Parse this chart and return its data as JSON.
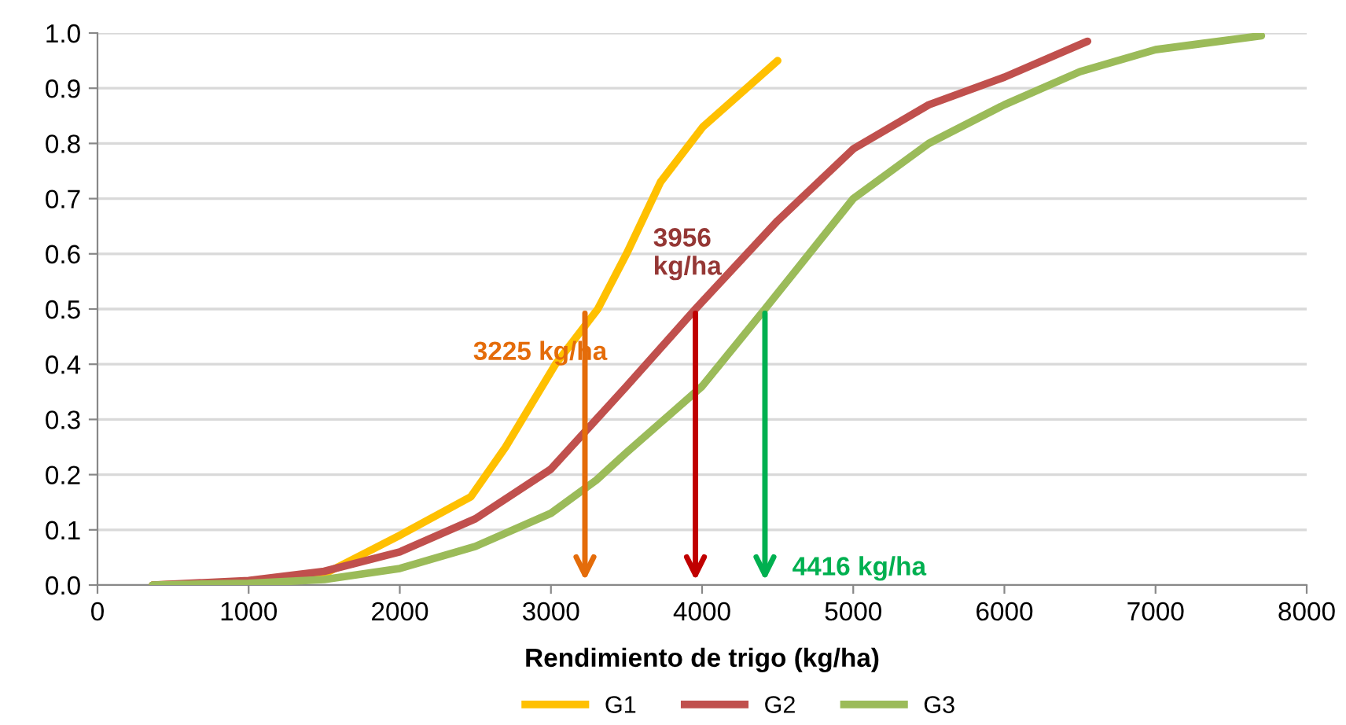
{
  "chart_data": {
    "type": "line",
    "xlabel": "Rendimiento de trigo (kg/ha)",
    "xlim": [
      0,
      8000
    ],
    "xticks": [
      0,
      1000,
      2000,
      3000,
      4000,
      5000,
      6000,
      7000,
      8000
    ],
    "ylim": [
      0,
      1.0
    ],
    "yticks": [
      {
        "value": 0,
        "label": "0.0"
      },
      0.1,
      0.2,
      0.3,
      0.4,
      0.5,
      0.6,
      0.7,
      0.8,
      0.9,
      {
        "value": 1.0,
        "label": "1.0"
      }
    ],
    "grid": "y",
    "legend": "bottom",
    "marker": "none",
    "line_style": "solid",
    "series": [
      {
        "name": "G1",
        "color": "#ffc000",
        "x": [
          365,
          1000,
          1500,
          2000,
          2470,
          2700,
          3030,
          3310,
          3500,
          3725,
          4005,
          4500
        ],
        "values": [
          0,
          0.005,
          0.02,
          0.09,
          0.16,
          0.25,
          0.4,
          0.5,
          0.6,
          0.73,
          0.83,
          0.95
        ]
      },
      {
        "name": "G2",
        "color": "#c0504d",
        "x": [
          365,
          1000,
          1500,
          2000,
          2500,
          3000,
          3300,
          3500,
          3956,
          4500,
          5000,
          5500,
          6000,
          6550
        ],
        "values": [
          0,
          0.008,
          0.025,
          0.06,
          0.12,
          0.21,
          0.3,
          0.36,
          0.5,
          0.66,
          0.79,
          0.87,
          0.92,
          0.985
        ]
      },
      {
        "name": "G3",
        "color": "#9bbb59",
        "x": [
          365,
          1000,
          1500,
          2000,
          2500,
          3000,
          3300,
          3500,
          4000,
          4416,
          5000,
          5500,
          6000,
          6500,
          7000,
          7700
        ],
        "values": [
          0,
          0.003,
          0.01,
          0.03,
          0.07,
          0.13,
          0.19,
          0.24,
          0.36,
          0.5,
          0.7,
          0.8,
          0.87,
          0.93,
          0.97,
          0.995
        ]
      }
    ],
    "annotations": [
      {
        "text": "3225 kg/ha",
        "x": 3225,
        "y": 0.5
      },
      {
        "text": "3956\nkg/ha",
        "x": 3956,
        "y": 0.5
      },
      {
        "text": "4416 kg/ha",
        "x": 4416,
        "y": 0.5
      }
    ]
  }
}
